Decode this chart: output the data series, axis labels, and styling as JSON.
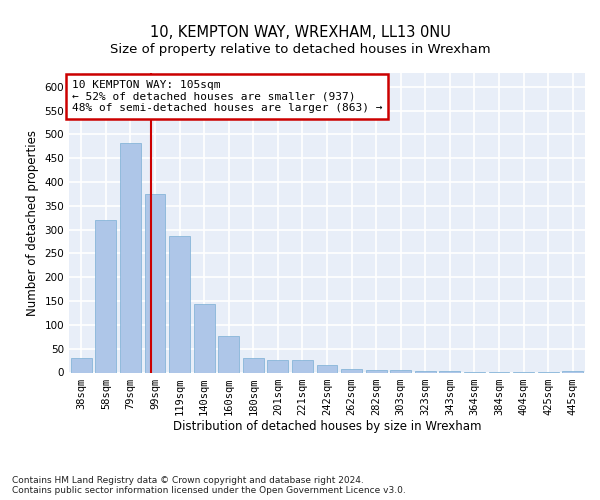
{
  "title1": "10, KEMPTON WAY, WREXHAM, LL13 0NU",
  "title2": "Size of property relative to detached houses in Wrexham",
  "xlabel": "Distribution of detached houses by size in Wrexham",
  "ylabel": "Number of detached properties",
  "categories": [
    "38sqm",
    "58sqm",
    "79sqm",
    "99sqm",
    "119sqm",
    "140sqm",
    "160sqm",
    "180sqm",
    "201sqm",
    "221sqm",
    "242sqm",
    "262sqm",
    "282sqm",
    "303sqm",
    "323sqm",
    "343sqm",
    "364sqm",
    "384sqm",
    "404sqm",
    "425sqm",
    "445sqm"
  ],
  "values": [
    30,
    320,
    482,
    375,
    287,
    143,
    76,
    31,
    27,
    27,
    15,
    8,
    6,
    5,
    4,
    3,
    2,
    2,
    2,
    1,
    4
  ],
  "bar_color": "#aec6e8",
  "bar_edge_color": "#7aafd4",
  "bg_color": "#e8eef8",
  "grid_color": "#ffffff",
  "vline_x": 2.83,
  "vline_color": "#cc0000",
  "annotation_text": "10 KEMPTON WAY: 105sqm\n← 52% of detached houses are smaller (937)\n48% of semi-detached houses are larger (863) →",
  "annotation_box_color": "#cc0000",
  "ylim": [
    0,
    630
  ],
  "yticks": [
    0,
    50,
    100,
    150,
    200,
    250,
    300,
    350,
    400,
    450,
    500,
    550,
    600
  ],
  "footer": "Contains HM Land Registry data © Crown copyright and database right 2024.\nContains public sector information licensed under the Open Government Licence v3.0.",
  "title_fontsize": 10.5,
  "subtitle_fontsize": 9.5,
  "axis_label_fontsize": 8.5,
  "tick_fontsize": 7.5,
  "annotation_fontsize": 8,
  "footer_fontsize": 6.5
}
